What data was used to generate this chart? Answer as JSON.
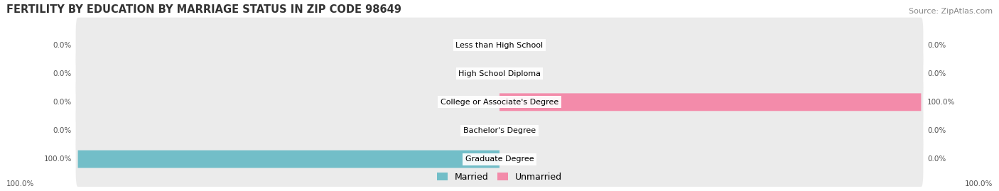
{
  "title": "FERTILITY BY EDUCATION BY MARRIAGE STATUS IN ZIP CODE 98649",
  "source": "Source: ZipAtlas.com",
  "categories": [
    "Less than High School",
    "High School Diploma",
    "College or Associate's Degree",
    "Bachelor's Degree",
    "Graduate Degree"
  ],
  "married_values": [
    0.0,
    0.0,
    0.0,
    0.0,
    100.0
  ],
  "unmarried_values": [
    0.0,
    0.0,
    100.0,
    0.0,
    0.0
  ],
  "married_color": "#72bec8",
  "unmarried_color": "#f38baa",
  "row_bg_color": "#ebebeb",
  "max_val": 100.0,
  "title_fontsize": 10.5,
  "source_fontsize": 8,
  "label_fontsize": 7.5,
  "cat_fontsize": 8
}
